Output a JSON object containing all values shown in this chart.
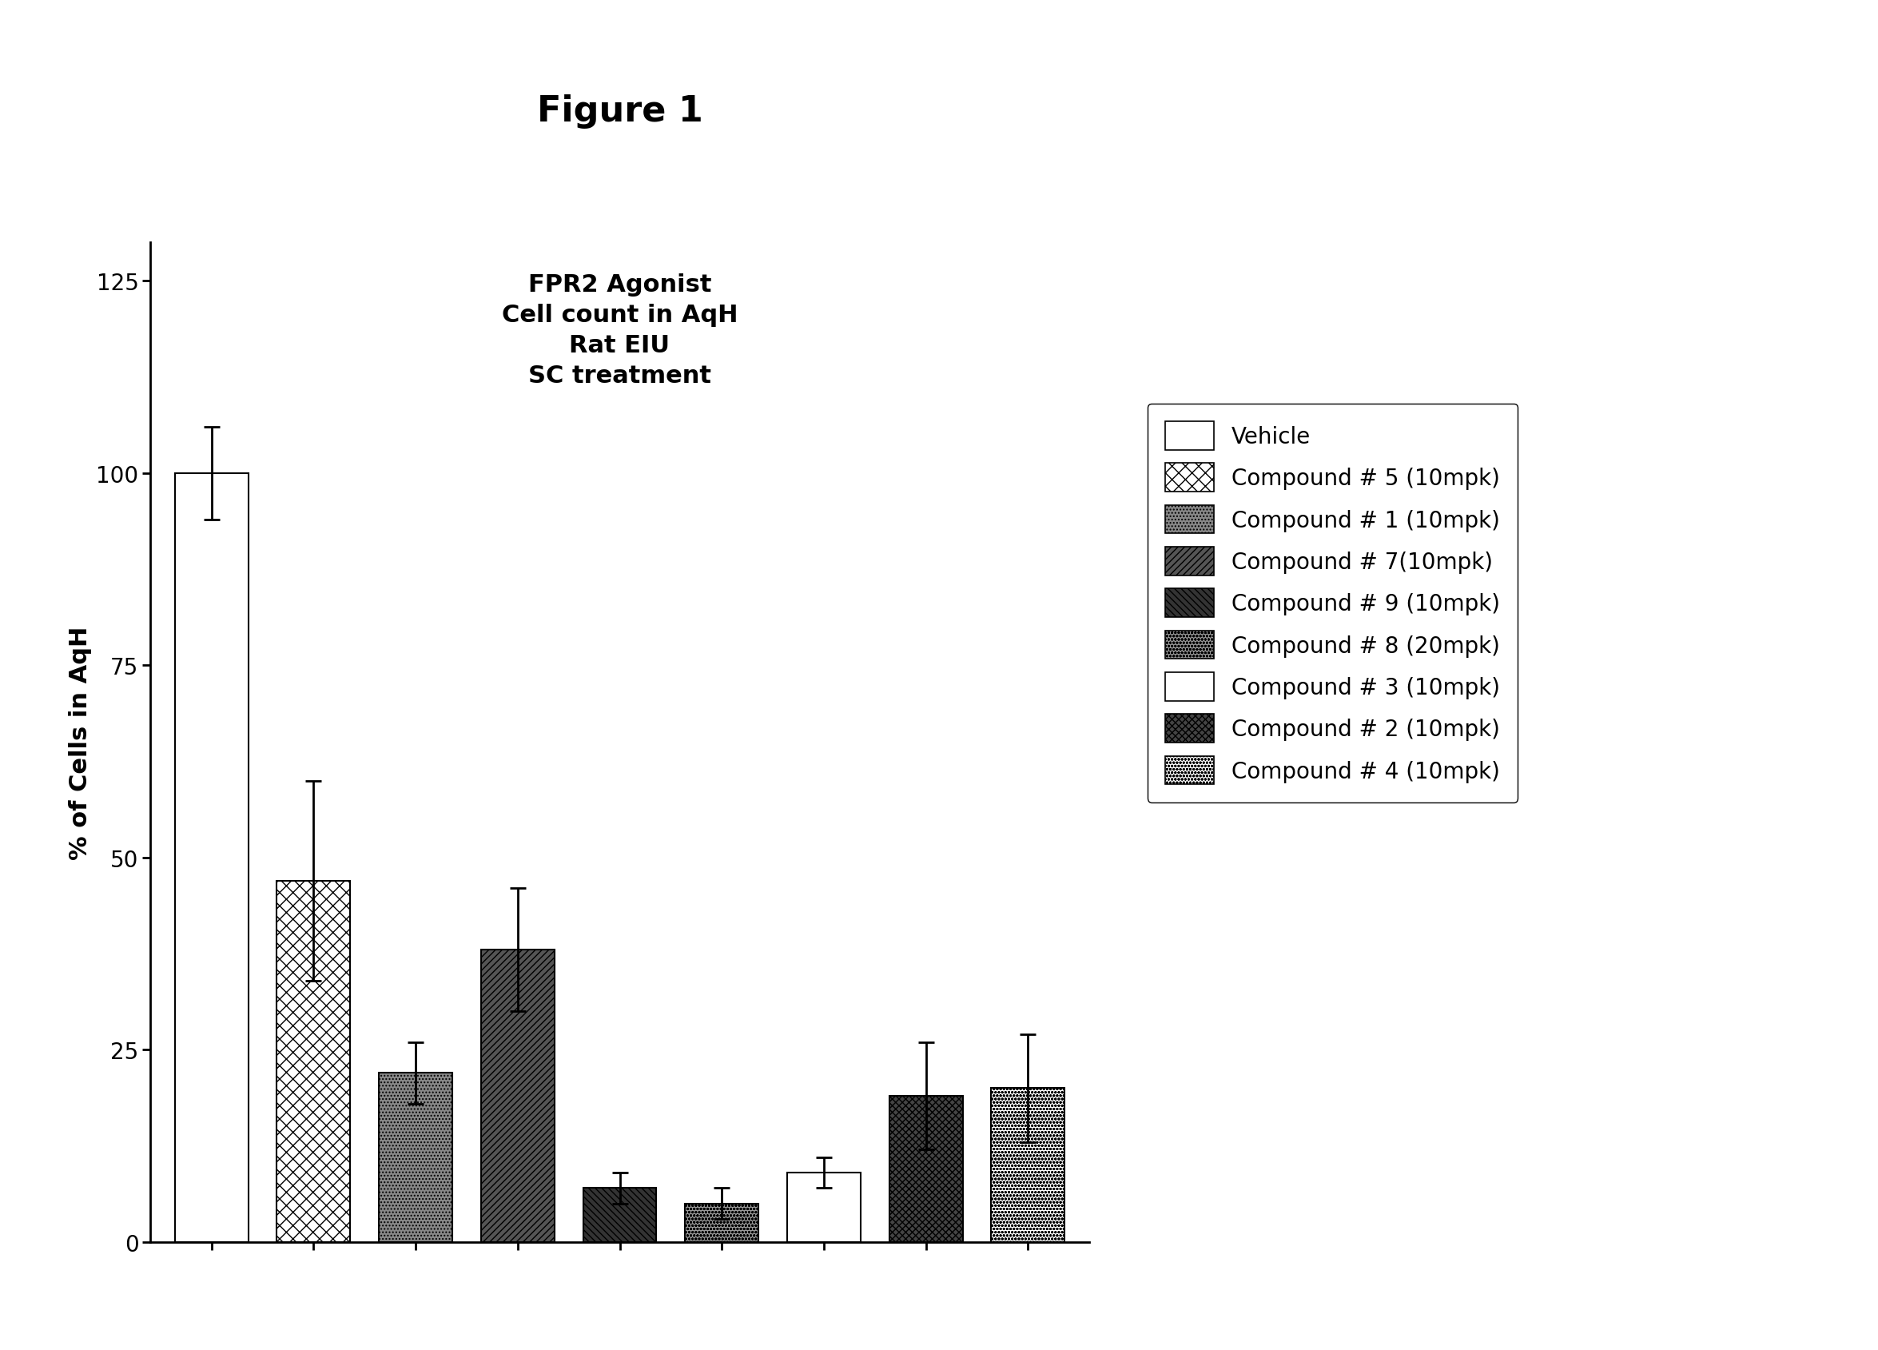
{
  "title": "Figure 1",
  "chart_title": "FPR2 Agonist\nCell count in AqH\nRat EIU\nSC treatment",
  "ylabel": "% of Cells in AqH",
  "ylim": [
    0,
    130
  ],
  "yticks": [
    0,
    25,
    50,
    75,
    100,
    125
  ],
  "values": [
    100,
    47,
    22,
    38,
    7,
    5,
    9,
    19,
    20
  ],
  "errors": [
    6,
    13,
    4,
    8,
    2,
    2,
    2,
    7,
    7
  ],
  "legend_labels": [
    "Vehicle",
    "Compound # 5 (10mpk)",
    "Compound # 1 (10mpk)",
    "Compound # 7(10mpk)",
    "Compound # 9 (10mpk)",
    "Compound # 8 (20mpk)",
    "Compound # 3 (10mpk)",
    "Compound # 2 (10mpk)",
    "Compound # 4 (10mpk)"
  ],
  "background_color": "white",
  "title_fontsize": 32,
  "chart_title_fontsize": 22,
  "axis_fontsize": 22,
  "tick_fontsize": 20,
  "legend_fontsize": 20
}
